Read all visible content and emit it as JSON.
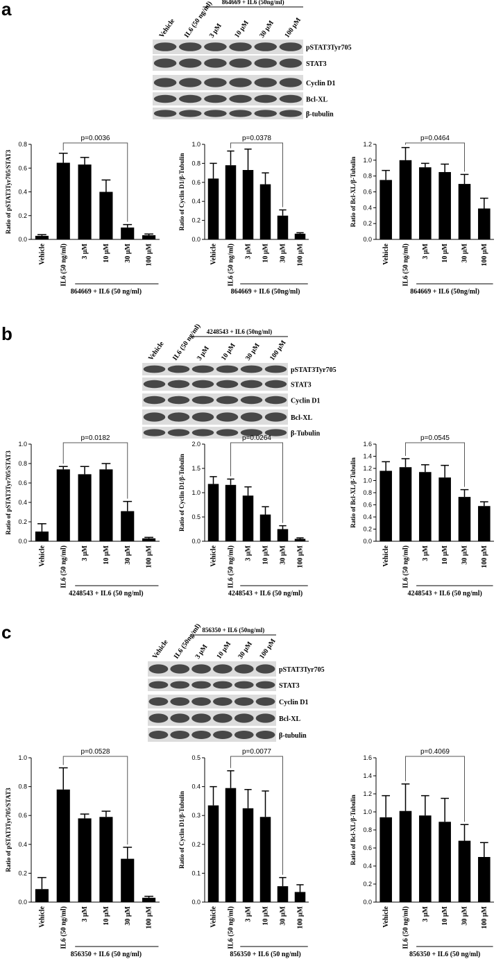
{
  "panels": [
    {
      "letter": "a",
      "blot": {
        "lanes": [
          "Vehicle",
          "IL6 (50 ng/ml)",
          "3 μM",
          "10 μM",
          "30 μM",
          "100 μM"
        ],
        "group": "864669 + IL6 (50ng/ml)",
        "proteins": [
          "pSTAT3Tyr705",
          "STAT3",
          "Cyclin D1",
          "Bcl-XL",
          "β-tubulin"
        ]
      }
    },
    {
      "letter": "b",
      "blot": {
        "lanes": [
          "Vehicle",
          "IL6 (50 ng/ml)",
          "3 μM",
          "10 μM",
          "30 μM",
          "100 μM"
        ],
        "group": "4248543 + IL6 (50ng/ml)",
        "proteins": [
          "pSTAT3Tyr705",
          "STAT3",
          "Cyclin D1",
          "Bcl-XL",
          "β-Tubulin"
        ]
      }
    },
    {
      "letter": "c",
      "blot": {
        "lanes": [
          "Vehicle",
          "IL6 (50ng/ml)",
          "3 μM",
          "10 μM",
          "30 μM",
          "100 μM"
        ],
        "group": "856350 + IL6 (50ng/ml)",
        "proteins": [
          "pSTAT3Tyr705",
          "STAT3",
          "Cyclin D1",
          "Bcl-XL",
          "β-tubulin"
        ]
      }
    }
  ],
  "chart_data": [
    {
      "type": "bar",
      "y_label": "Ratio of pSTAT3Tyr705/STAT3",
      "categories": [
        "Vehicle",
        "IL6 (50 ng/ml)",
        "3 μM",
        "10 μM",
        "30 μM",
        "100 μM"
      ],
      "values": [
        0.03,
        0.645,
        0.63,
        0.4,
        0.1,
        0.035
      ],
      "errors": [
        0.01,
        0.08,
        0.06,
        0.1,
        0.025,
        0.01
      ],
      "color": "#000000",
      "ylim": [
        0,
        0.8
      ],
      "yticks": [
        {
          "value": 0,
          "label": "0.0"
        },
        0.2,
        0.4,
        0.6,
        0.8
      ],
      "annotation": "p=0.0036",
      "group_label": "864669 + IL6 (50 ng/ml)"
    },
    {
      "type": "bar",
      "y_label": "Ratio of Cyclin D1/β-Tubulin",
      "categories": [
        "Vehicle",
        "IL6 (50 ng/ml)",
        "3 μM",
        "10 μM",
        "30 μM",
        "100 μM"
      ],
      "values": [
        0.64,
        0.78,
        0.73,
        0.58,
        0.25,
        0.06
      ],
      "errors": [
        0.16,
        0.15,
        0.22,
        0.12,
        0.06,
        0.01
      ],
      "color": "#000000",
      "ylim": [
        0,
        1.0
      ],
      "yticks": [
        {
          "value": 0,
          "label": "0.0"
        },
        0.2,
        0.4,
        0.6,
        0.8,
        {
          "value": 1,
          "label": "1.0"
        }
      ],
      "annotation": "p=0.0378",
      "group_label": "864669 + IL6 (50ng/ml)"
    },
    {
      "type": "bar",
      "y_label": "Ratio of Bcl-XL/β-Tubulin",
      "categories": [
        "Vehicle",
        "IL6 (50 ng/ml)",
        "3 μM",
        "10 μM",
        "30 μM",
        "100 μM"
      ],
      "values": [
        0.75,
        1.0,
        0.91,
        0.85,
        0.7,
        0.39
      ],
      "errors": [
        0.12,
        0.16,
        0.05,
        0.1,
        0.12,
        0.13
      ],
      "color": "#000000",
      "ylim": [
        0,
        1.2
      ],
      "yticks": [
        {
          "value": 0,
          "label": "0.0"
        },
        0.2,
        0.4,
        0.6,
        0.8,
        {
          "value": 1,
          "label": "1.0"
        },
        1.2
      ],
      "annotation": "p=0.0464",
      "group_label": "864669 + IL6 (50ng/ml)"
    },
    {
      "type": "bar",
      "y_label": "Ratio of pSTAT3Tyr705/STAT3",
      "categories": [
        "Vehicle",
        "IL6 (50 ng/ml)",
        "3 μM",
        "10 μM",
        "30 μM",
        "100 μM"
      ],
      "values": [
        0.1,
        0.74,
        0.69,
        0.74,
        0.31,
        0.03
      ],
      "errors": [
        0.08,
        0.03,
        0.08,
        0.06,
        0.1,
        0.01
      ],
      "color": "#000000",
      "ylim": [
        0,
        1.0
      ],
      "yticks": [
        {
          "value": 0,
          "label": "0.0"
        },
        0.2,
        0.4,
        0.6,
        0.8,
        {
          "value": 1,
          "label": "1.0"
        }
      ],
      "annotation": "p=0.0182",
      "group_label": "4248543 + IL6 (50 ng/ml)"
    },
    {
      "type": "bar",
      "y_label": "Ratio of Cyclin D1/β-Tubulin",
      "categories": [
        "Vehicle",
        "IL6 (50 ng/ml)",
        "3 μM",
        "10 μM",
        "30 μM",
        "100 μM"
      ],
      "values": [
        1.18,
        1.16,
        0.94,
        0.55,
        0.25,
        0.05
      ],
      "errors": [
        0.15,
        0.12,
        0.18,
        0.16,
        0.07,
        0.02
      ],
      "color": "#000000",
      "ylim": [
        0,
        2.0
      ],
      "yticks": [
        {
          "value": 0,
          "label": "0.0"
        },
        0.5,
        {
          "value": 1,
          "label": "1.0"
        },
        1.5,
        {
          "value": 2,
          "label": "2.0"
        }
      ],
      "annotation": "p=0.0264",
      "group_label": "4248543 + IL6 (50 ng/ml)"
    },
    {
      "type": "bar",
      "y_label": "Ratio of Bcl-XL/β-Tubulin",
      "categories": [
        "Vehicle",
        "IL6 (50 ng/ml)",
        "3 μM",
        "10 μM",
        "30 μM",
        "100 μM"
      ],
      "values": [
        1.16,
        1.22,
        1.14,
        1.05,
        0.73,
        0.58
      ],
      "errors": [
        0.15,
        0.14,
        0.12,
        0.2,
        0.12,
        0.07
      ],
      "color": "#000000",
      "ylim": [
        0,
        1.6
      ],
      "yticks": [
        {
          "value": 0,
          "label": "0.0"
        },
        0.2,
        0.4,
        0.6,
        0.8,
        {
          "value": 1,
          "label": "1.0"
        },
        1.2,
        1.4,
        1.6
      ],
      "annotation": "p=0.0545",
      "group_label": "4248543 + IL6 (50 ng/ml)"
    },
    {
      "type": "bar",
      "y_label": "Ratio of pSTAT3Tyr705/STAT3",
      "categories": [
        "Vehicle",
        "IL6 (50 ng/ml)",
        "3 μM",
        "10 μM",
        "30 μM",
        "100 μM"
      ],
      "values": [
        0.09,
        0.78,
        0.58,
        0.59,
        0.3,
        0.03
      ],
      "errors": [
        0.08,
        0.15,
        0.03,
        0.04,
        0.08,
        0.01
      ],
      "color": "#000000",
      "ylim": [
        0,
        1.0
      ],
      "yticks": [
        {
          "value": 0,
          "label": "0.0"
        },
        0.2,
        0.4,
        0.6,
        0.8,
        {
          "value": 1,
          "label": "1.0"
        }
      ],
      "annotation": "p=0.0528",
      "group_label": "856350 + IL6 (50 ng/ml)"
    },
    {
      "type": "bar",
      "y_label": "Ratio of Cyclin D1/β-Tubulin",
      "categories": [
        "Vehicle",
        "IL6 (50 ng/ml)",
        "3 μM",
        "10 μM",
        "30 μM",
        "100 μM"
      ],
      "values": [
        0.335,
        0.395,
        0.325,
        0.295,
        0.055,
        0.035
      ],
      "errors": [
        0.065,
        0.06,
        0.065,
        0.09,
        0.03,
        0.025
      ],
      "color": "#000000",
      "ylim": [
        0,
        0.5
      ],
      "yticks": [
        {
          "value": 0,
          "label": "0.0"
        },
        0.1,
        0.2,
        0.3,
        0.4,
        0.5
      ],
      "annotation": "p=0.0077",
      "group_label": "856350 + IL6 (50 ng/ml)"
    },
    {
      "type": "bar",
      "y_label": "Ratio of Bcl-XL/β-Tubulin",
      "categories": [
        "Vehicle",
        "IL6 (50 ng/ml)",
        "3 μM",
        "10 μM",
        "30 μM",
        "100 μM"
      ],
      "values": [
        0.94,
        1.01,
        0.96,
        0.89,
        0.68,
        0.5
      ],
      "errors": [
        0.24,
        0.3,
        0.22,
        0.26,
        0.18,
        0.16
      ],
      "color": "#000000",
      "ylim": [
        0,
        1.6
      ],
      "yticks": [
        {
          "value": 0,
          "label": "0.0"
        },
        0.2,
        0.4,
        0.6,
        0.8,
        {
          "value": 1,
          "label": "1.0"
        },
        1.2,
        1.4,
        1.6
      ],
      "annotation": "p=0.4069",
      "group_label": "856350 + IL6 (50 ng/ml)"
    }
  ]
}
